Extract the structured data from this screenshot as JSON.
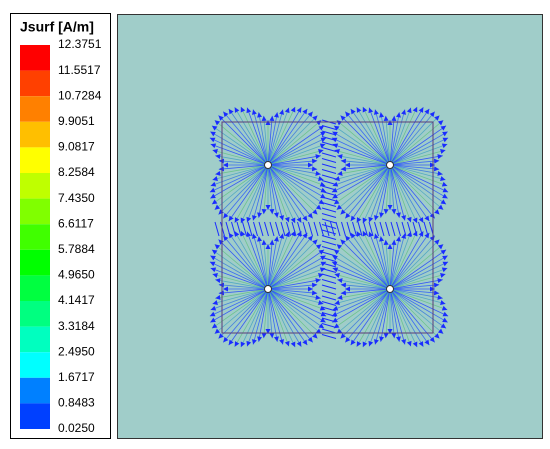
{
  "legend": {
    "title": "Jsurf [A/m]",
    "labels": [
      "12.3751",
      "11.5517",
      "10.7284",
      "9.9051",
      "9.0817",
      "8.2584",
      "7.4350",
      "6.6117",
      "5.7884",
      "4.9650",
      "4.1417",
      "3.3184",
      "2.4950",
      "1.6717",
      "0.8483",
      "0.0250"
    ],
    "colors": [
      "#ff0000",
      "#ff4000",
      "#ff8000",
      "#ffbf00",
      "#ffff00",
      "#bfff00",
      "#80ff00",
      "#40ff00",
      "#00ff00",
      "#00ff40",
      "#00ff80",
      "#00ffbf",
      "#00ffff",
      "#0080ff",
      "#0040ff"
    ]
  }
}
